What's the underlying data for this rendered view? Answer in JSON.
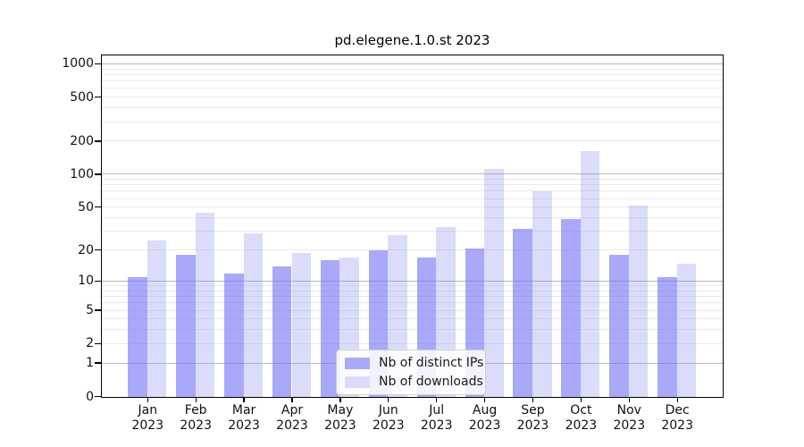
{
  "figure": {
    "background": "#ffffff"
  },
  "chart_data": {
    "type": "bar",
    "title": "pd.elegene.1.0.st 2023",
    "categories": [
      {
        "month": "Jan",
        "year": "2023"
      },
      {
        "month": "Feb",
        "year": "2023"
      },
      {
        "month": "Mar",
        "year": "2023"
      },
      {
        "month": "Apr",
        "year": "2023"
      },
      {
        "month": "May",
        "year": "2023"
      },
      {
        "month": "Jun",
        "year": "2023"
      },
      {
        "month": "Jul",
        "year": "2023"
      },
      {
        "month": "Aug",
        "year": "2023"
      },
      {
        "month": "Sep",
        "year": "2023"
      },
      {
        "month": "Oct",
        "year": "2023"
      },
      {
        "month": "Nov",
        "year": "2023"
      },
      {
        "month": "Dec",
        "year": "2023"
      }
    ],
    "series": [
      {
        "name": "Nb of distinct IPs",
        "swatch_color": "#a9a9f9",
        "fill_color": "rgba(112,112,245,0.6)",
        "values": [
          11,
          18,
          12,
          14,
          16,
          20,
          17,
          21,
          32,
          39,
          18,
          11
        ]
      },
      {
        "name": "Nb of downloads",
        "swatch_color": "#dbdbfa",
        "fill_color": "rgba(135,135,238,0.3)",
        "values": [
          25,
          45,
          29,
          19,
          17,
          28,
          33,
          112,
          70,
          163,
          52,
          15
        ]
      }
    ],
    "yscale": "log1p",
    "ylim": [
      0,
      1300
    ],
    "yticks": [
      0,
      1,
      2,
      5,
      10,
      20,
      50,
      100,
      200,
      500,
      1000
    ],
    "major_gridlines": [
      1,
      10,
      100,
      1000
    ],
    "minor_gridlines": [
      2,
      3,
      4,
      5,
      6,
      7,
      8,
      9,
      20,
      30,
      40,
      50,
      60,
      70,
      80,
      90,
      200,
      300,
      400,
      500,
      600,
      700,
      800,
      900
    ],
    "grid_major_color": "#b8b8b8",
    "grid_minor_color": "#eaeaea",
    "legend_position": "lower center",
    "xlabel": "",
    "ylabel": ""
  }
}
